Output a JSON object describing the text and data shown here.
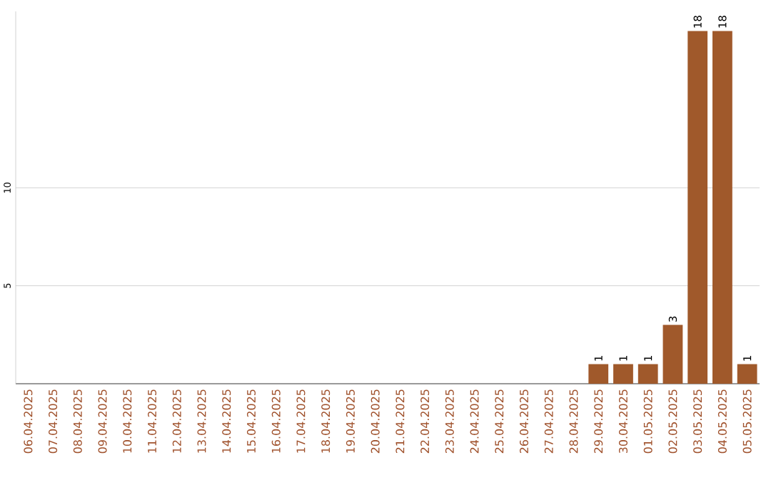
{
  "chart_data": {
    "type": "bar",
    "categories": [
      "06.04.2025",
      "07.04.2025",
      "08.04.2025",
      "09.04.2025",
      "10.04.2025",
      "11.04.2025",
      "12.04.2025",
      "13.04.2025",
      "14.04.2025",
      "15.04.2025",
      "16.04.2025",
      "17.04.2025",
      "18.04.2025",
      "19.04.2025",
      "20.04.2025",
      "21.04.2025",
      "22.04.2025",
      "23.04.2025",
      "24.04.2025",
      "25.04.2025",
      "26.04.2025",
      "27.04.2025",
      "28.04.2025",
      "29.04.2025",
      "30.04.2025",
      "01.05.2025",
      "02.05.2025",
      "03.05.2025",
      "04.05.2025",
      "05.05.2025"
    ],
    "values": [
      0,
      0,
      0,
      0,
      0,
      0,
      0,
      0,
      0,
      0,
      0,
      0,
      0,
      0,
      0,
      0,
      0,
      0,
      0,
      0,
      0,
      0,
      0,
      1,
      1,
      1,
      3,
      18,
      18,
      1
    ],
    "value_labels": [
      null,
      null,
      null,
      null,
      null,
      null,
      null,
      null,
      null,
      null,
      null,
      null,
      null,
      null,
      null,
      null,
      null,
      null,
      null,
      null,
      null,
      null,
      null,
      "1",
      "1",
      "1",
      "3",
      "18",
      "18",
      "1"
    ],
    "color": "#a0592b",
    "ylim": [
      0,
      19
    ],
    "yticks": [
      5,
      10
    ],
    "grid": "y"
  }
}
